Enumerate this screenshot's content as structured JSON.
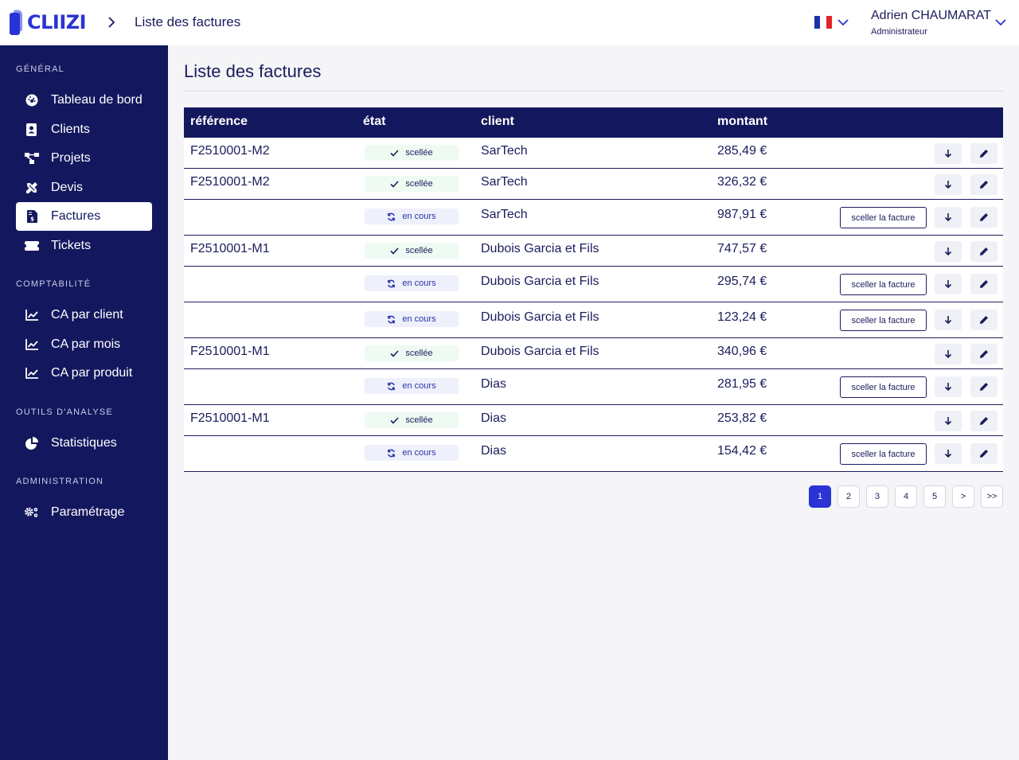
{
  "app": {
    "logo_text": "CLIIZI"
  },
  "header": {
    "breadcrumb": "Liste des factures",
    "user_name": "Adrien CHAUMARAT",
    "user_role": "Administrateur"
  },
  "sidebar": {
    "sections": [
      {
        "title": "GÉNÉRAL",
        "items": [
          {
            "label": "Tableau de bord",
            "icon": "dashboard-icon"
          },
          {
            "label": "Clients",
            "icon": "contact-card-icon"
          },
          {
            "label": "Projets",
            "icon": "project-diagram-icon"
          },
          {
            "label": "Devis",
            "icon": "pencil-ruler-icon"
          },
          {
            "label": "Factures",
            "icon": "invoice-dollar-icon",
            "active": true
          },
          {
            "label": "Tickets",
            "icon": "ticket-icon"
          }
        ]
      },
      {
        "title": "COMPTABILITÉ",
        "items": [
          {
            "label": "CA par client",
            "icon": "line-chart-icon"
          },
          {
            "label": "CA par mois",
            "icon": "line-chart-icon"
          },
          {
            "label": "CA par produit",
            "icon": "line-chart-icon"
          }
        ]
      },
      {
        "title": "OUTILS D'ANALYSE",
        "items": [
          {
            "label": "Statistiques",
            "icon": "pie-chart-icon"
          }
        ]
      },
      {
        "title": "ADMINISTRATION",
        "items": [
          {
            "label": "Paramétrage",
            "icon": "cogs-icon"
          }
        ]
      }
    ]
  },
  "main": {
    "title": "Liste des factures",
    "columns": {
      "reference": "référence",
      "state": "état",
      "client": "client",
      "amount": "montant"
    },
    "seal_label": "sceller la facture",
    "rows": [
      {
        "reference": "F2510001-M2",
        "state": "scellée",
        "sealed": true,
        "client": "SarTech",
        "amount": "285,49 €"
      },
      {
        "reference": "F2510001-M2",
        "state": "scellée",
        "sealed": true,
        "client": "SarTech",
        "amount": "326,32 €"
      },
      {
        "reference": "",
        "state": "en cours",
        "sealed": false,
        "client": "SarTech",
        "amount": "987,91 €"
      },
      {
        "reference": "F2510001-M1",
        "state": "scellée",
        "sealed": true,
        "client": "Dubois Garcia et Fils",
        "amount": "747,57 €"
      },
      {
        "reference": "",
        "state": "en cours",
        "sealed": false,
        "client": "Dubois Garcia et Fils",
        "amount": "295,74 €"
      },
      {
        "reference": "",
        "state": "en cours",
        "sealed": false,
        "client": "Dubois Garcia et Fils",
        "amount": "123,24 €"
      },
      {
        "reference": "F2510001-M1",
        "state": "scellée",
        "sealed": true,
        "client": "Dubois Garcia et Fils",
        "amount": "340,96 €"
      },
      {
        "reference": "",
        "state": "en cours",
        "sealed": false,
        "client": "Dias",
        "amount": "281,95 €"
      },
      {
        "reference": "F2510001-M1",
        "state": "scellée",
        "sealed": true,
        "client": "Dias",
        "amount": "253,82 €"
      },
      {
        "reference": "",
        "state": "en cours",
        "sealed": false,
        "client": "Dias",
        "amount": "154,42 €"
      }
    ],
    "pagination": [
      "1",
      "2",
      "3",
      "4",
      "5",
      ">",
      ">>"
    ],
    "current_page": "1"
  },
  "colors": {
    "navy": "#13185e",
    "accent": "#2a33d4",
    "sealed_bg": "#eefaf2",
    "pending_bg": "#eef0fb"
  }
}
